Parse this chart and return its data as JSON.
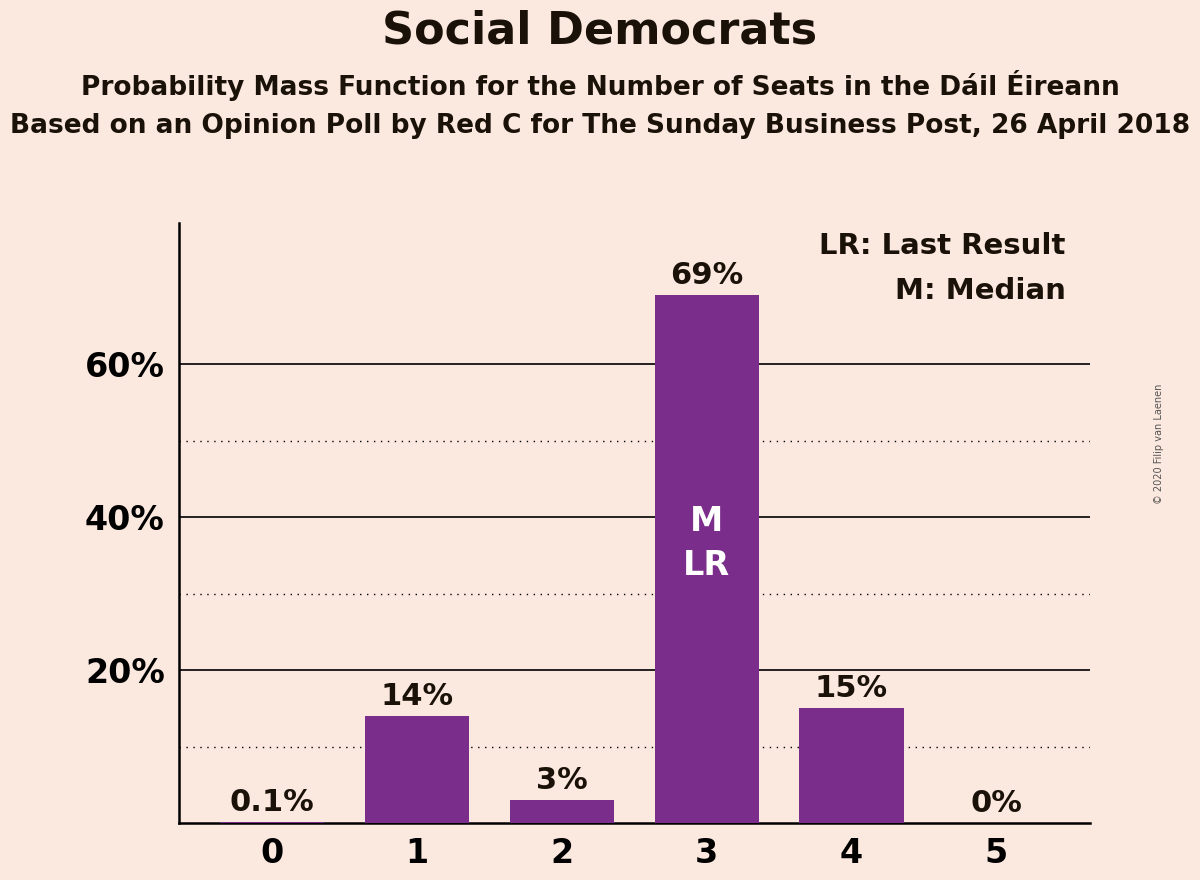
{
  "title": "Social Democrats",
  "subtitle1": "Probability Mass Function for the Number of Seats in the Dáil Éireann",
  "subtitle2": "Based on an Opinion Poll by Red C for The Sunday Business Post, 26 April 2018",
  "categories": [
    0,
    1,
    2,
    3,
    4,
    5
  ],
  "values": [
    0.001,
    0.14,
    0.03,
    0.69,
    0.15,
    0.0
  ],
  "bar_labels": [
    "0.1%",
    "14%",
    "3%",
    "69%",
    "15%",
    "0%"
  ],
  "bar_color": "#7B2D8B",
  "background_color": "#FBE8DF",
  "text_color": "#1a1208",
  "legend_text1": "LR: Last Result",
  "legend_text2": "M: Median",
  "inside_bar_label": "M\nLR",
  "inside_bar_index": 3,
  "watermark": "© 2020 Filip van Laenen",
  "yticks_labeled": [
    0.2,
    0.4,
    0.6
  ],
  "ytick_labels": [
    "20%",
    "40%",
    "60%"
  ],
  "solid_gridlines": [
    0.2,
    0.4,
    0.6
  ],
  "dotted_gridlines": [
    0.1,
    0.3,
    0.5
  ],
  "ylim": [
    0,
    0.785
  ],
  "title_fontsize": 32,
  "subtitle_fontsize": 19,
  "axis_tick_fontsize": 24,
  "bar_label_fontsize": 22,
  "legend_fontsize": 21,
  "inside_label_fontsize": 24
}
